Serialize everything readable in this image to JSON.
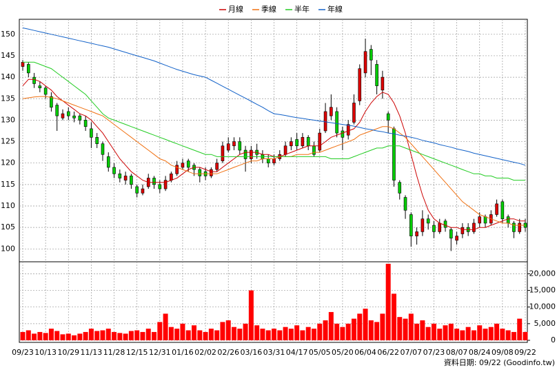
{
  "chart_data": [
    {
      "type": "candlestick",
      "legend": "top",
      "grid": true,
      "up_color": "#dd0000",
      "down_color": "#00cc00",
      "annotation": "資料日期: 09/22 (Goodinfo.tw)",
      "categories": [
        "09/23",
        null,
        null,
        null,
        "10/13",
        null,
        null,
        null,
        "10/29",
        null,
        null,
        null,
        "11/13",
        null,
        null,
        null,
        "11/28",
        null,
        null,
        null,
        "12/15",
        null,
        null,
        null,
        "12/31",
        null,
        null,
        null,
        "01/16",
        null,
        null,
        null,
        "02/02",
        null,
        null,
        null,
        "02/26",
        null,
        null,
        null,
        "03/16",
        null,
        null,
        null,
        "03/31",
        null,
        null,
        null,
        "04/17",
        null,
        null,
        null,
        "05/05",
        null,
        null,
        null,
        "05/20",
        null,
        null,
        null,
        "06/04",
        null,
        null,
        null,
        "06/22",
        null,
        null,
        null,
        "07/07",
        null,
        null,
        null,
        "07/23",
        null,
        null,
        null,
        "08/07",
        null,
        null,
        null,
        "08/24",
        null,
        null,
        null,
        "09/08",
        null,
        null,
        null,
        "09/22"
      ],
      "open": [
        142.5,
        143,
        140,
        138,
        137.5,
        135.5,
        133.5,
        130.5,
        132,
        131,
        131,
        130,
        128,
        126,
        124.5,
        121.5,
        119,
        117.5,
        116,
        117,
        114.5,
        113,
        114.5,
        116.5,
        115,
        114,
        116,
        117.5,
        119,
        120.5,
        119.5,
        118.5,
        118,
        117,
        118.5,
        120.5,
        123,
        124,
        125,
        123,
        121,
        123,
        122,
        121,
        120,
        121,
        122,
        124,
        125.5,
        124,
        126,
        124,
        123,
        127.5,
        131,
        132,
        127.5,
        126.5,
        129.5,
        134.5,
        141,
        146.5,
        143,
        137,
        131.5,
        128,
        115.5,
        112,
        108,
        103,
        104,
        107,
        105.5,
        104,
        106.5,
        104.5,
        102,
        103.5,
        105,
        104,
        106,
        107.5,
        106,
        108,
        111,
        107.5,
        106,
        104,
        106
      ],
      "high": [
        144,
        143.5,
        141,
        139,
        138,
        136.5,
        134,
        132.5,
        133,
        132,
        131.5,
        131,
        129.5,
        127,
        125,
        122.5,
        120,
        118.5,
        118,
        117.5,
        115,
        115,
        117.5,
        117,
        116,
        117,
        118,
        120.5,
        121,
        121,
        120,
        119,
        119,
        119,
        121,
        125,
        126,
        126,
        126,
        124,
        124,
        124.5,
        123,
        122,
        122,
        123,
        125,
        126,
        127,
        127,
        126.5,
        125,
        128,
        134,
        136,
        133,
        128.5,
        130,
        136,
        143,
        149,
        147.5,
        144,
        141.5,
        132,
        128.5,
        116,
        112.5,
        108.5,
        105,
        109,
        108,
        106.5,
        107,
        107,
        105,
        104,
        106,
        106,
        107,
        108.5,
        108,
        109,
        111.5,
        111.5,
        108,
        106.5,
        107,
        107
      ],
      "low": [
        141.5,
        140,
        137.5,
        136.5,
        135,
        132,
        127.5,
        130,
        130,
        129.5,
        129,
        127.5,
        123.5,
        123.5,
        120.5,
        118,
        116.5,
        115.5,
        115,
        114,
        112,
        112.5,
        114,
        114,
        113,
        113.5,
        115.5,
        117,
        118.5,
        118,
        117,
        115.5,
        116,
        116.5,
        118,
        120,
        122.5,
        123,
        122,
        118,
        120,
        121,
        120,
        119,
        119.5,
        120.5,
        121.5,
        123,
        123,
        123.5,
        123,
        121.5,
        122.5,
        127,
        130,
        126,
        123,
        125.5,
        129,
        133.5,
        140,
        140.5,
        136,
        135,
        127,
        114.5,
        111.5,
        107,
        100.5,
        101,
        103,
        104.5,
        102.5,
        103.5,
        104,
        99.5,
        101,
        102.5,
        103,
        103.5,
        105,
        105,
        105.5,
        107.5,
        106,
        105,
        102.5,
        103.5,
        104
      ],
      "close": [
        143.5,
        141,
        138.5,
        137.5,
        136,
        133,
        131,
        131.5,
        131,
        130.5,
        130,
        128.5,
        126,
        124.5,
        122,
        119,
        117.5,
        116.5,
        117,
        115,
        113,
        114,
        116.5,
        115,
        114,
        116,
        117.5,
        119.5,
        120,
        119,
        118.5,
        117,
        117,
        118.5,
        120,
        124,
        124.5,
        125,
        123,
        121,
        123,
        122,
        121,
        120,
        121,
        122,
        124,
        125,
        124,
        126,
        124,
        122,
        127,
        132,
        133,
        127,
        126,
        129,
        134,
        142,
        146,
        144,
        138,
        140,
        130,
        116,
        113,
        109,
        103,
        104,
        107,
        106,
        104,
        106,
        105,
        102.5,
        103,
        105,
        104,
        106,
        107.5,
        106,
        108,
        110.5,
        107,
        106,
        104,
        106,
        105
      ],
      "series": [
        {
          "name": "月線",
          "color": "#cc0000",
          "values": [
            138,
            139.5,
            139.5,
            139,
            138,
            137,
            135.5,
            134.5,
            133.5,
            132.5,
            131.5,
            131,
            130,
            128.5,
            127,
            125,
            123,
            121,
            119.5,
            118,
            117,
            116,
            115.5,
            115.5,
            115.5,
            115.5,
            116,
            116.5,
            117.5,
            118.5,
            119,
            119,
            118.5,
            118,
            118,
            119,
            120,
            121,
            122,
            122.5,
            122.5,
            122.5,
            122,
            122,
            121.5,
            121.5,
            122,
            122.5,
            123,
            123.5,
            124,
            124,
            124,
            125,
            126,
            126.5,
            127,
            127.5,
            128,
            129.5,
            132,
            134,
            135.5,
            136.5,
            136,
            134,
            131,
            127,
            122,
            117,
            112.5,
            109,
            107,
            106,
            105.5,
            105,
            105,
            104.5,
            104.5,
            104.5,
            105,
            105,
            105.5,
            106,
            106.5,
            107,
            107,
            106.5,
            106.5
          ]
        },
        {
          "name": "季線",
          "color": "#f07010",
          "values": [
            135,
            135.2,
            135.4,
            135.5,
            135.5,
            135.3,
            135,
            134.5,
            134,
            133.5,
            133,
            132.5,
            132,
            131.5,
            131,
            130,
            129,
            128,
            127,
            126,
            125,
            124,
            123,
            122,
            121,
            120.5,
            119.5,
            119,
            118.5,
            118,
            117.5,
            117.5,
            117.5,
            117.5,
            117.5,
            118,
            118.5,
            119,
            119.5,
            120,
            120.5,
            120.5,
            121,
            121,
            121,
            121.5,
            121.5,
            121.5,
            122,
            122,
            122,
            122.5,
            122.5,
            123,
            123.5,
            124,
            124.5,
            125,
            125.5,
            126.5,
            127,
            127.5,
            128,
            128.5,
            128.5,
            128,
            127,
            126,
            124.5,
            123,
            121.5,
            120,
            118.5,
            117,
            115.5,
            114,
            112.5,
            111,
            110,
            109,
            108,
            107.5,
            107,
            106.5,
            106,
            106,
            105.5,
            105.5,
            105.5
          ]
        },
        {
          "name": "半年",
          "color": "#22cc22",
          "values": [
            143.5,
            143.5,
            143.5,
            143,
            142.5,
            142,
            141,
            140,
            139,
            138,
            137,
            136,
            134.5,
            133,
            131.5,
            130.5,
            130,
            129.5,
            129,
            128.5,
            128,
            127.5,
            127,
            126.5,
            126,
            125.5,
            125,
            124.5,
            124,
            123.5,
            123,
            122.5,
            122,
            122,
            121.5,
            121.5,
            121.5,
            121.5,
            121.5,
            121.5,
            121.5,
            121.5,
            121.5,
            121.5,
            121.5,
            121.5,
            121.5,
            121.5,
            121.5,
            121.5,
            121.5,
            121.5,
            121.5,
            121.5,
            121,
            121,
            121,
            121,
            121.5,
            122,
            122.5,
            123,
            123.5,
            123.5,
            124,
            124,
            124,
            123.5,
            123,
            122.5,
            122,
            121.5,
            121,
            120.5,
            120,
            119.5,
            119,
            118.5,
            118,
            117.5,
            117.5,
            117,
            117,
            116.5,
            116.5,
            116.5,
            116,
            116,
            116
          ]
        },
        {
          "name": "年線",
          "color": "#1060c8",
          "values": [
            151.5,
            151.2,
            150.9,
            150.6,
            150.3,
            150,
            149.7,
            149.4,
            149.1,
            148.8,
            148.5,
            148.2,
            147.9,
            147.6,
            147.3,
            147,
            146.6,
            146.2,
            145.8,
            145.4,
            145,
            144.6,
            144.2,
            143.8,
            143.3,
            142.8,
            142.3,
            141.8,
            141.4,
            141,
            140.6,
            140.3,
            140,
            139.3,
            138.6,
            137.9,
            137.2,
            136.5,
            135.8,
            135.1,
            134.4,
            133.7,
            133,
            132.2,
            131.5,
            131.3,
            131.1,
            130.8,
            130.6,
            130.4,
            130.2,
            130,
            129.8,
            129.6,
            129.4,
            129.2,
            129,
            128.8,
            128.6,
            128.3,
            128,
            127.8,
            127.5,
            127.3,
            127,
            126.8,
            126.5,
            126.3,
            126,
            125.7,
            125.3,
            125,
            124.7,
            124.3,
            124,
            123.7,
            123.3,
            123,
            122.7,
            122.3,
            122,
            121.7,
            121.4,
            121.1,
            120.8,
            120.5,
            120.2,
            119.9,
            119.5
          ]
        }
      ],
      "ylim": [
        97,
        153.5
      ],
      "yticks": [
        100,
        105,
        110,
        115,
        120,
        125,
        130,
        135,
        140,
        145,
        150
      ]
    },
    {
      "type": "bar",
      "color": "#ff0000",
      "values": [
        2500,
        3000,
        2000,
        2500,
        2200,
        3500,
        2800,
        1800,
        2000,
        1500,
        2000,
        2500,
        3500,
        2800,
        3000,
        3500,
        2500,
        2200,
        2000,
        2800,
        3000,
        2500,
        3500,
        2500,
        5500,
        8000,
        4000,
        3500,
        5000,
        3000,
        4500,
        3000,
        2500,
        3500,
        3000,
        5500,
        6000,
        4000,
        3500,
        5000,
        15000,
        4500,
        3500,
        3000,
        3500,
        3000,
        4000,
        3500,
        4500,
        3000,
        4000,
        3500,
        5000,
        6000,
        8500,
        5000,
        4000,
        5000,
        6500,
        8000,
        9500,
        6000,
        5500,
        8000,
        23000,
        14000,
        7000,
        6500,
        8000,
        5000,
        6000,
        4000,
        5000,
        3500,
        4500,
        5000,
        3500,
        3000,
        4000,
        3000,
        4500,
        3500,
        4000,
        5000,
        3500,
        3000,
        2500,
        6500,
        2500
      ],
      "ylim": [
        0,
        23600
      ],
      "yticks": [
        0,
        {
          "value": 5000,
          "label": "5,000"
        },
        {
          "value": 10000,
          "label": "10,000"
        },
        {
          "value": 15000,
          "label": "15,000"
        },
        {
          "value": 20000,
          "label": "20,000"
        }
      ]
    }
  ]
}
